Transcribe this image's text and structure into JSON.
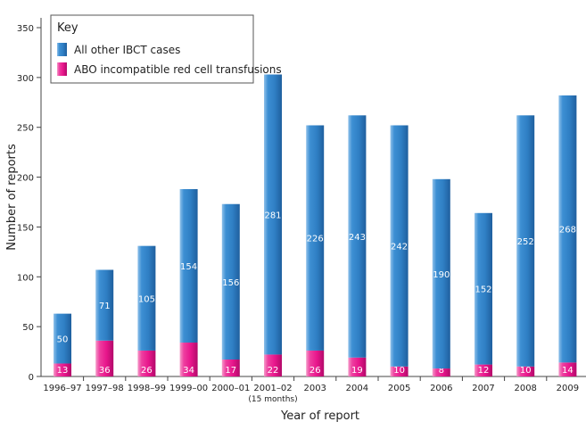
{
  "chart_data": {
    "type": "bar",
    "stacked": true,
    "categories": [
      "1996–97",
      "1997–98",
      "1998–99",
      "1999–00",
      "2000–01",
      "2001–02",
      "2003",
      "2004",
      "2005",
      "2006",
      "2007",
      "2008",
      "2009"
    ],
    "category_notes": {
      "2001–02": "(15 months)"
    },
    "series": [
      {
        "name": "ABO incompatible red cell transfusions",
        "color": "#e8168c",
        "values": [
          13,
          36,
          26,
          34,
          17,
          22,
          26,
          19,
          10,
          8,
          12,
          10,
          14
        ]
      },
      {
        "name": "All other IBCT cases",
        "color": "#2f7fc4",
        "values": [
          50,
          71,
          105,
          154,
          156,
          281,
          226,
          243,
          242,
          190,
          152,
          252,
          268
        ]
      }
    ],
    "xlabel": "Year of report",
    "ylabel": "Number of reports",
    "ylim": [
      0,
      350
    ],
    "yticks": [
      0,
      50,
      100,
      150,
      200,
      250,
      300,
      350
    ],
    "legend": {
      "title": "Key",
      "placement": "top-left"
    },
    "data_labels": true
  }
}
